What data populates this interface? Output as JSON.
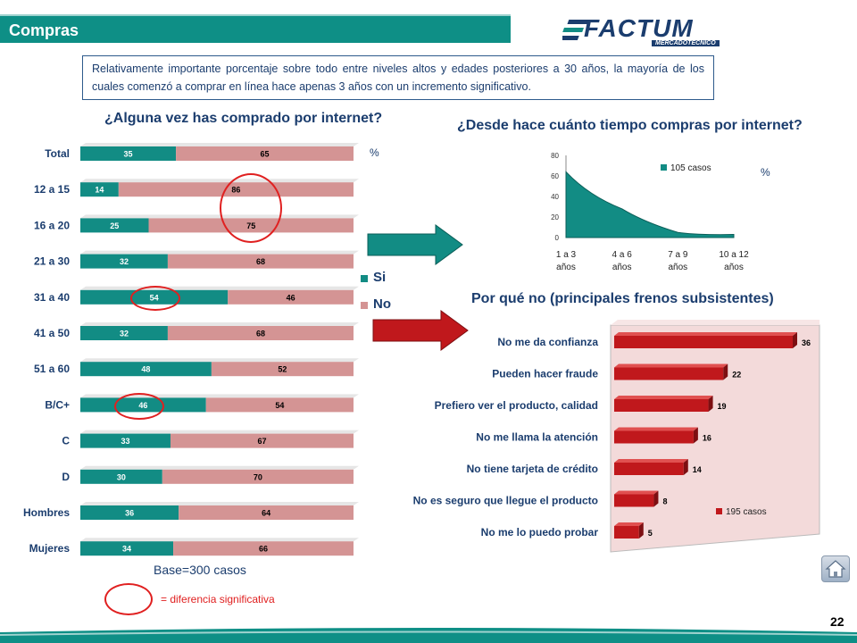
{
  "header": {
    "title": "Compras"
  },
  "logo": {
    "name": "FACTUM",
    "tagline": "MERCADOTÉCNICO"
  },
  "summary_text": "Relativamente importante porcentaje sobre todo entre niveles altos y edades posteriores a 30 años, la mayoría de los cuales comenzó a comprar en línea hace apenas 3 años con un incremento significativo.",
  "pct_symbol": "%",
  "base_note": "Base=300 casos",
  "sig_note": "= diferencia significativa",
  "page_number": "22",
  "colors": {
    "teal": "#128c84",
    "pink": "#d49494",
    "red": "#c0181c",
    "navy": "#1b3d6e",
    "highlight": "#e02020"
  },
  "chart_data": [
    {
      "type": "bar",
      "orientation": "horizontal-stacked",
      "title": "¿Alguna vez has comprado por internet?",
      "categories": [
        "Total",
        "12 a 15",
        "16 a 20",
        "21 a 30",
        "31 a 40",
        "41 a 50",
        "51 a 60",
        "B/C+",
        "C",
        "D",
        "Hombres",
        "Mujeres"
      ],
      "series": [
        {
          "name": "Si",
          "values": [
            35,
            14,
            25,
            32,
            54,
            32,
            48,
            46,
            33,
            30,
            36,
            34
          ]
        },
        {
          "name": "No",
          "values": [
            65,
            86,
            75,
            68,
            46,
            68,
            52,
            54,
            67,
            70,
            64,
            66
          ]
        }
      ],
      "highlighted": [
        {
          "category": "12 a 15",
          "series": "No"
        },
        {
          "category": "31 a 40",
          "series": "Si"
        },
        {
          "category": "B/C+",
          "series": "Si"
        }
      ]
    },
    {
      "type": "area",
      "title": "¿Desde hace cuánto tiempo compras por internet?",
      "categories": [
        "1 a 3 años",
        "4 a 6 años",
        "7 a 9 años",
        "10 a 12 años"
      ],
      "series": [
        {
          "name": "105 casos",
          "values": [
            64,
            28,
            5,
            3
          ]
        }
      ],
      "ylim": [
        0,
        80
      ],
      "yticks": [
        0,
        20,
        40,
        60,
        80
      ]
    },
    {
      "type": "bar",
      "orientation": "horizontal",
      "title": "Por qué no (principales frenos subsistentes)",
      "categories": [
        "No me da confianza",
        "Pueden hacer fraude",
        "Prefiero ver el producto, calidad",
        "No me llama la atención",
        "No tiene tarjeta de crédito",
        "No es seguro que llegue el producto",
        "No me lo puedo probar"
      ],
      "series": [
        {
          "name": "195 casos",
          "values": [
            36,
            22,
            19,
            16,
            14,
            8,
            5
          ]
        }
      ]
    }
  ]
}
